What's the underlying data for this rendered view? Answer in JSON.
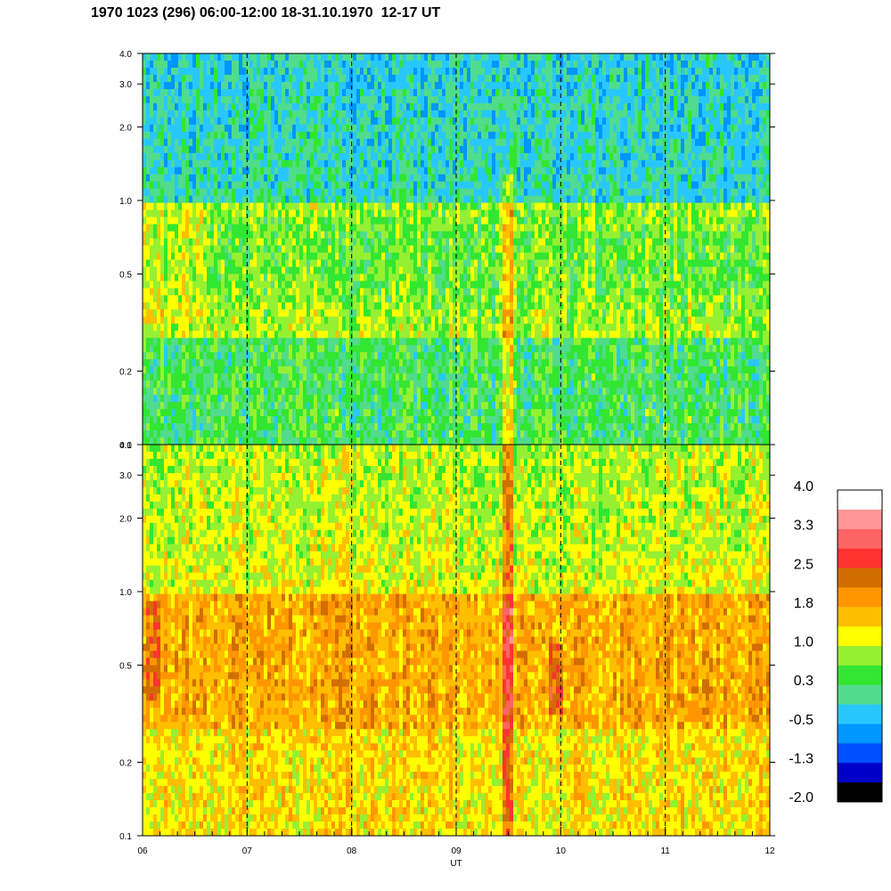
{
  "chart_data": {
    "type": "heatmap",
    "title": "1970 1023 (296) 06:00-12:00 18-31.10.1970  12-17 UT",
    "xlabel": "UT",
    "x_ticks": [
      "06",
      "07",
      "08",
      "09",
      "10",
      "11",
      "12"
    ],
    "xlim": [
      6,
      12
    ],
    "dashed_vertical_lines_at": [
      7,
      8,
      9,
      10,
      11
    ],
    "panels": [
      {
        "name": "upper",
        "y_scale": "log",
        "ylim": [
          0.1,
          4.0
        ],
        "y_ticks": [
          "0.1",
          "0.2",
          "0.5",
          "1.0",
          "2.0",
          "3.0",
          "4.0"
        ],
        "dominant_value_by_band": {
          "above_1.0": "-0.5 to 0.3 (green/cyan)",
          "0.3_to_1.0": "1.0 to 1.8 (yellow/orange)",
          "below_0.3": "0.3 to 1.0 (green)"
        },
        "enhancement_near_x": 9.5
      },
      {
        "name": "lower",
        "y_scale": "log",
        "ylim": [
          0.1,
          4.0
        ],
        "y_ticks": [
          "0.1",
          "0.2",
          "0.5",
          "1.0",
          "2.0",
          "3.0",
          "4.0"
        ],
        "dominant_value_by_band": {
          "above_1.0": "1.0 to 1.8 (yellow/orange)",
          "0.3_to_1.0": "1.8 to 2.5 (dark orange)",
          "below_0.3": "1.8 (orange)"
        },
        "enhancement_near_x": 9.5
      }
    ],
    "colorbar": {
      "labels": [
        "4.0",
        "3.3",
        "2.5",
        "1.8",
        "1.0",
        "0.3",
        "-0.5",
        "-1.3",
        "-2.0"
      ],
      "colors": [
        "#ffffff",
        "#ff9696",
        "#ff6464",
        "#ff3232",
        "#d26e00",
        "#ff9600",
        "#ffbe00",
        "#ffff00",
        "#96f032",
        "#32e632",
        "#50dc8c",
        "#28c8ff",
        "#0096ff",
        "#0050ff",
        "#0000c8",
        "#000000"
      ]
    }
  }
}
